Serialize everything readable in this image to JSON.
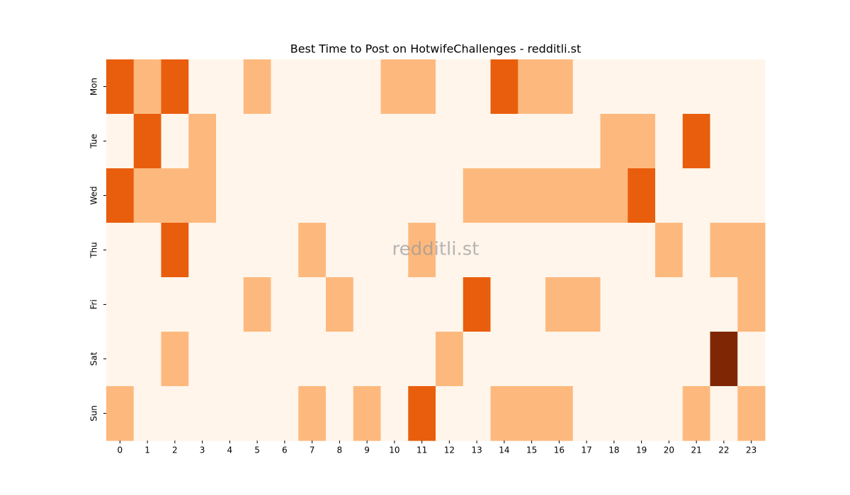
{
  "chart_data": {
    "type": "heatmap",
    "title": "Best Time to Post on HotwifeChallenges - redditli.st",
    "watermark": "redditli.st",
    "x": [
      0,
      1,
      2,
      3,
      4,
      5,
      6,
      7,
      8,
      9,
      10,
      11,
      12,
      13,
      14,
      15,
      16,
      17,
      18,
      19,
      20,
      21,
      22,
      23
    ],
    "y": [
      "Mon",
      "Tue",
      "Wed",
      "Thu",
      "Fri",
      "Sat",
      "Sun"
    ],
    "values": [
      [
        2,
        1,
        2,
        0,
        0,
        1,
        0,
        0,
        0,
        0,
        1,
        1,
        0,
        0,
        2,
        1,
        1,
        0,
        0,
        0,
        0,
        0,
        0,
        0
      ],
      [
        0,
        2,
        0,
        1,
        0,
        0,
        0,
        0,
        0,
        0,
        0,
        0,
        0,
        0,
        0,
        0,
        0,
        0,
        1,
        1,
        0,
        2,
        0,
        0
      ],
      [
        2,
        1,
        1,
        1,
        0,
        0,
        0,
        0,
        0,
        0,
        0,
        0,
        0,
        1,
        1,
        1,
        1,
        1,
        1,
        2,
        0,
        0,
        0,
        0
      ],
      [
        0,
        0,
        2,
        0,
        0,
        0,
        0,
        1,
        0,
        0,
        0,
        1,
        0,
        0,
        0,
        0,
        0,
        0,
        0,
        0,
        1,
        0,
        1,
        1
      ],
      [
        0,
        0,
        0,
        0,
        0,
        1,
        0,
        0,
        1,
        0,
        0,
        0,
        0,
        2,
        0,
        0,
        1,
        1,
        0,
        0,
        0,
        0,
        0,
        1
      ],
      [
        0,
        0,
        1,
        0,
        0,
        0,
        0,
        0,
        0,
        0,
        0,
        0,
        1,
        0,
        0,
        0,
        0,
        0,
        0,
        0,
        0,
        0,
        3,
        0
      ],
      [
        1,
        0,
        0,
        0,
        0,
        0,
        0,
        1,
        0,
        1,
        0,
        2,
        0,
        0,
        1,
        1,
        1,
        0,
        0,
        0,
        0,
        1,
        0,
        1
      ]
    ],
    "colors": [
      "#fff5eb",
      "#fdb97d",
      "#e95e0d",
      "#7f2704"
    ]
  }
}
